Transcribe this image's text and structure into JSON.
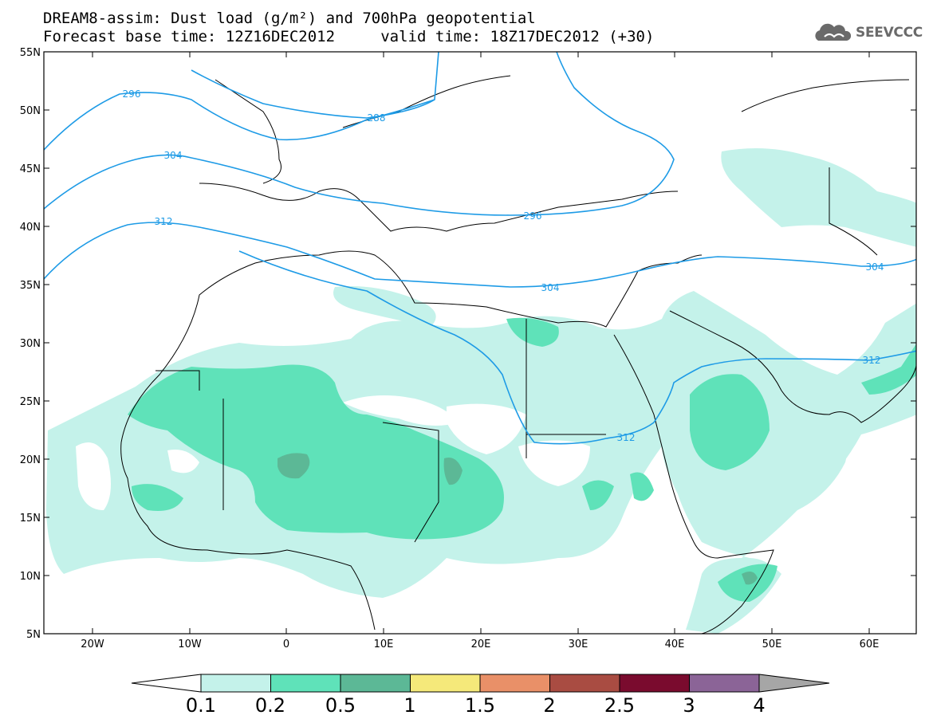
{
  "title": {
    "line1": "DREAM8-assim: Dust load (g/m²) and 700hPa geopotential",
    "line2": "Forecast base time: 12Z16DEC2012     valid time: 18Z17DEC2012 (+30)"
  },
  "logo": {
    "text": "SEEVCCC",
    "icon": "cloud-logo-icon"
  },
  "map": {
    "lon_range": [
      -25,
      65
    ],
    "lat_range": [
      5,
      55
    ],
    "lon_ticks": [
      "20W",
      "10W",
      "0",
      "10E",
      "20E",
      "30E",
      "40E",
      "50E",
      "60E"
    ],
    "lat_ticks": [
      "55N",
      "50N",
      "45N",
      "40N",
      "35N",
      "30N",
      "25N",
      "20N",
      "15N",
      "10N",
      "5N"
    ],
    "contour_labels": [
      "296",
      "288",
      "304",
      "312",
      "296",
      "304",
      "304",
      "312",
      "312"
    ]
  },
  "colorbar": {
    "labels": [
      "0.1",
      "0.2",
      "0.5",
      "1",
      "1.5",
      "2",
      "2.5",
      "3",
      "4"
    ],
    "colors": [
      "#c4f2ea",
      "#5fe2b9",
      "#5cb896",
      "#f5e97a",
      "#e99068",
      "#a94c42",
      "#7a0b2e",
      "#8b6497"
    ]
  },
  "colors": {
    "dust_low": "#c4f2ea",
    "dust_mid": "#5fe2b9",
    "dust_high": "#5cb896",
    "contour": "#1e9be6"
  }
}
